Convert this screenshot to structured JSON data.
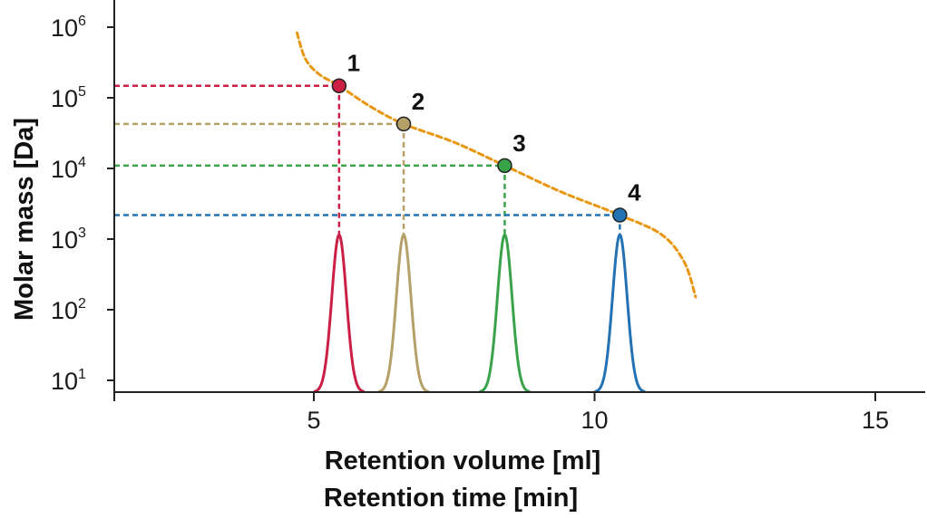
{
  "chart_data": {
    "type": "line",
    "title": "",
    "ylabel": "Molar mass [Da]",
    "xlabel_lines": [
      "Retention volume [ml]",
      "Retention time [min]"
    ],
    "yscale": "log",
    "ylim": [
      1,
      6
    ],
    "xlim": [
      1.5,
      17.5
    ],
    "x_ticks": [
      {
        "value": 2,
        "label": ""
      },
      {
        "value": 5,
        "label": "5"
      },
      {
        "value": 10,
        "label": "10"
      },
      {
        "value": 15,
        "label": "15"
      }
    ],
    "y_ticks": [
      {
        "exp": 1,
        "base": "10",
        "sup": "1"
      },
      {
        "exp": 2,
        "base": "10",
        "sup": "2"
      },
      {
        "exp": 3,
        "base": "10",
        "sup": "3"
      },
      {
        "exp": 4,
        "base": "10",
        "sup": "4"
      },
      {
        "exp": 5,
        "base": "10",
        "sup": "5"
      },
      {
        "exp": 6,
        "base": "10",
        "sup": "6"
      }
    ],
    "calibration_curve": {
      "color": "#e8960e",
      "points": [
        {
          "x": 4.7,
          "log_mass": 5.92
        },
        {
          "x": 4.85,
          "log_mass": 5.55
        },
        {
          "x": 5.1,
          "log_mass": 5.33
        },
        {
          "x": 5.45,
          "log_mass": 5.17
        },
        {
          "x": 6.0,
          "log_mass": 4.88
        },
        {
          "x": 6.6,
          "log_mass": 4.63
        },
        {
          "x": 7.5,
          "log_mass": 4.37
        },
        {
          "x": 8.4,
          "log_mass": 4.04
        },
        {
          "x": 9.4,
          "log_mass": 3.67
        },
        {
          "x": 10.45,
          "log_mass": 3.34
        },
        {
          "x": 11.2,
          "log_mass": 3.06
        },
        {
          "x": 11.6,
          "log_mass": 2.67
        },
        {
          "x": 11.8,
          "log_mass": 2.18
        }
      ]
    },
    "peak_height_log": 3.06,
    "peak_sigma": 0.13,
    "peaks": [
      {
        "label": "1",
        "x": 5.45,
        "log_mass": 5.17,
        "color": "#cc1f45"
      },
      {
        "label": "2",
        "x": 6.6,
        "log_mass": 4.63,
        "color": "#b5a068"
      },
      {
        "label": "3",
        "x": 8.4,
        "log_mass": 4.04,
        "color": "#3aa34a"
      },
      {
        "label": "4",
        "x": 10.45,
        "log_mass": 3.34,
        "color": "#2272b4"
      }
    ]
  }
}
